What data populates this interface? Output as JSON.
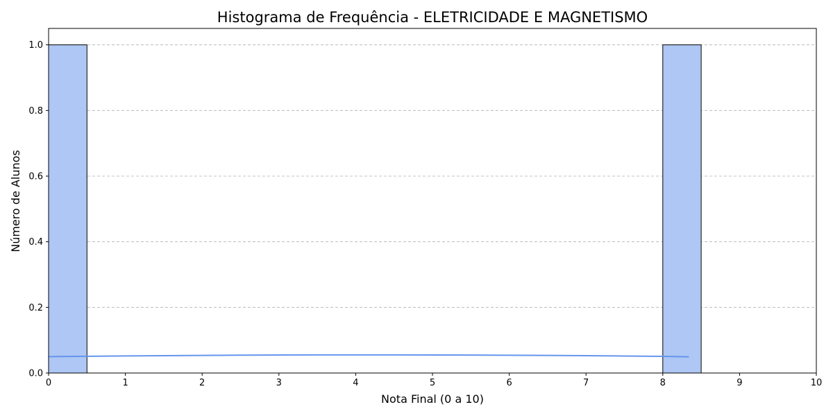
{
  "chart_data": {
    "type": "bar",
    "title": "Histograma de Frequência - ELETRICIDADE E MAGNETISMO",
    "xlabel": "Nota Final (0 a 10)",
    "ylabel": "Número de Alunos",
    "xlim": [
      0,
      10
    ],
    "ylim": [
      0,
      1.05
    ],
    "xticks": [
      0,
      1,
      2,
      3,
      4,
      5,
      6,
      7,
      8,
      9,
      10
    ],
    "yticks": [
      "0.0",
      "0.2",
      "0.4",
      "0.6",
      "0.8",
      "1.0"
    ],
    "grid": "y-dashed",
    "bins": [
      {
        "x0": 0.0,
        "x1": 0.5,
        "count": 1
      },
      {
        "x0": 8.0,
        "x1": 8.5,
        "count": 1
      }
    ],
    "kde": {
      "x": [
        0.0,
        0.5,
        1.0,
        1.5,
        2.0,
        2.5,
        3.0,
        3.5,
        4.0,
        4.5,
        5.0,
        5.5,
        6.0,
        6.5,
        7.0,
        7.5,
        8.0,
        8.34
      ],
      "y": [
        0.05,
        0.051,
        0.052,
        0.0529,
        0.0537,
        0.0543,
        0.0548,
        0.0551,
        0.0552,
        0.0551,
        0.0549,
        0.0546,
        0.0541,
        0.0535,
        0.0527,
        0.0518,
        0.0507,
        0.0495
      ]
    },
    "colors": {
      "bar": "#aec7f4",
      "kde": "#6495ed",
      "grid": "#b0b0b0"
    }
  }
}
